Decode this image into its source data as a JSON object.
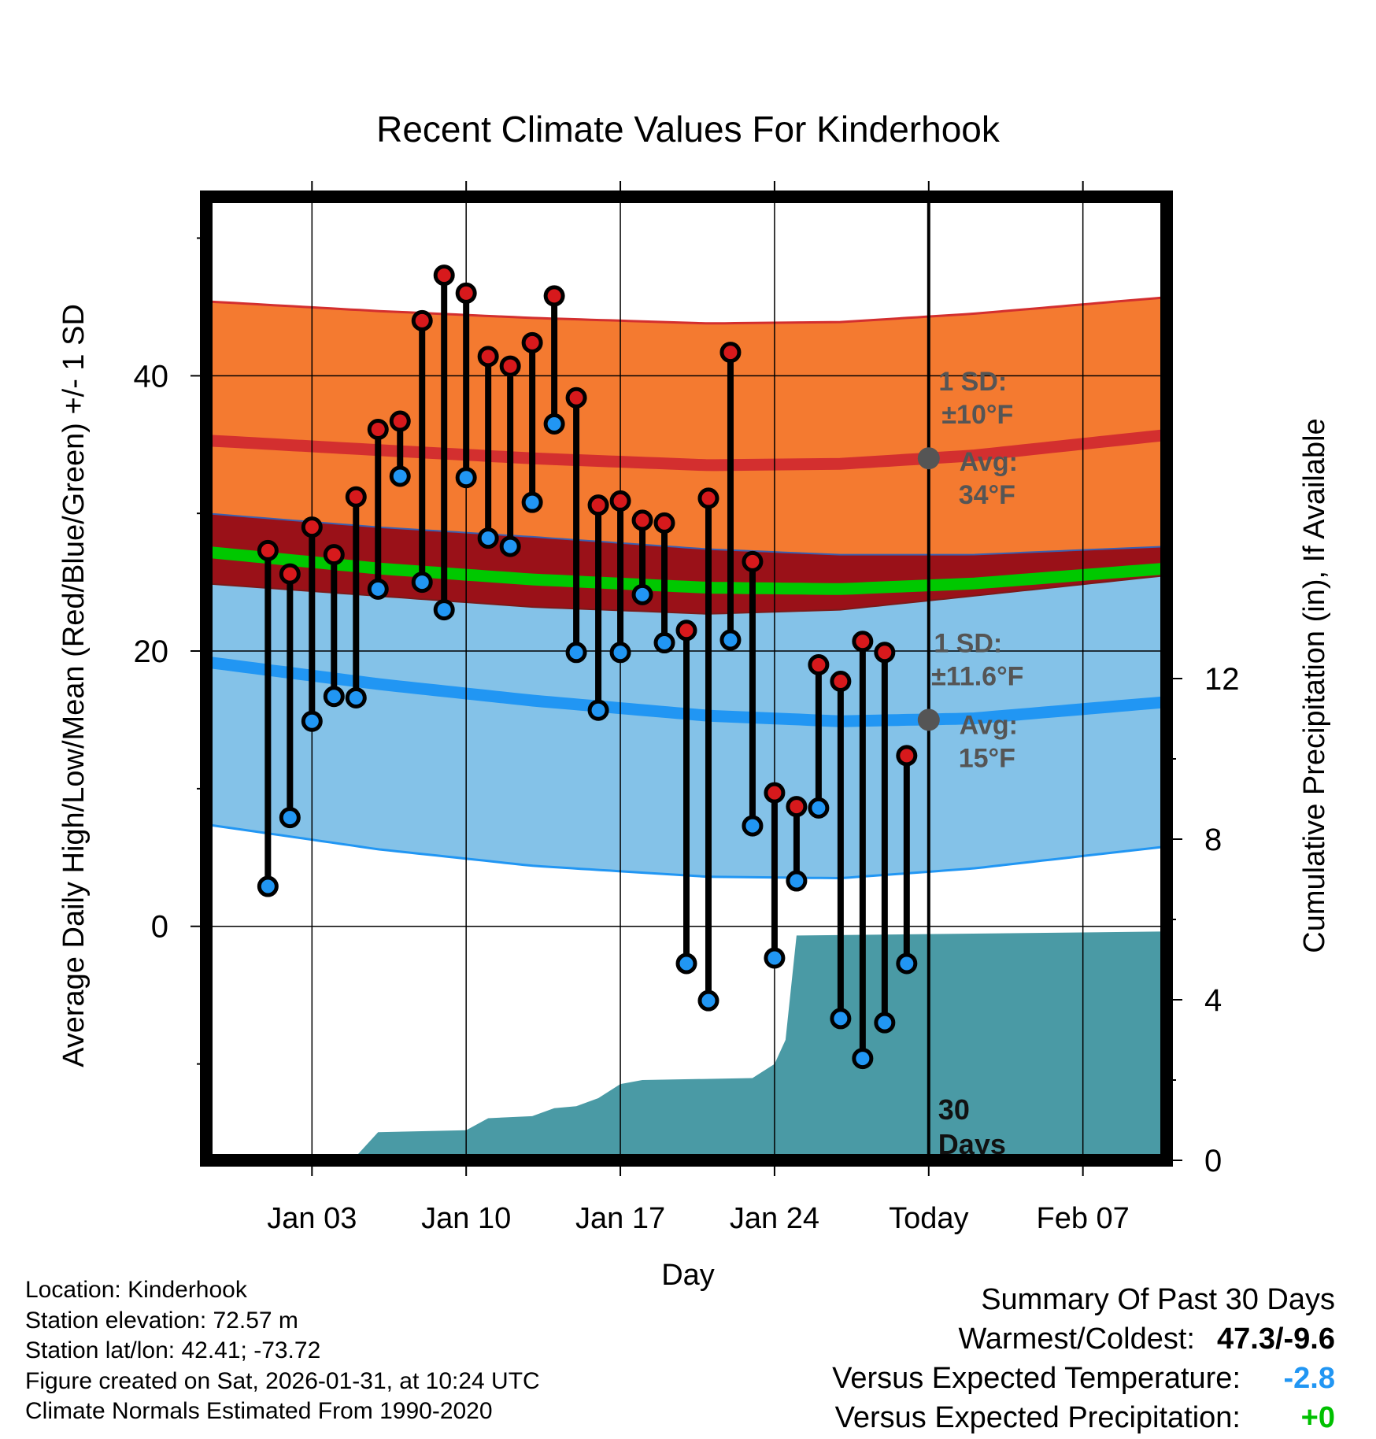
{
  "chart_data": {
    "type": "climate-range",
    "title": "Recent Climate Values For Kinderhook",
    "xlabel": "Day",
    "ylabel": "Average Daily High/Low/Mean (Red/Blue/Green) +/- 1 SD",
    "y2label": "Cumulative Precipitation (in), If Available",
    "ylim": [
      -17,
      53
    ],
    "y2lim": [
      0,
      24
    ],
    "xlim": [
      -2.8,
      40.8
    ],
    "yticks": [
      0,
      20,
      40
    ],
    "y2ticks": [
      0,
      4,
      8,
      12
    ],
    "xticks": [
      {
        "day": 2,
        "label": "Jan 03"
      },
      {
        "day": 9,
        "label": "Jan 10"
      },
      {
        "day": 16,
        "label": "Jan 17"
      },
      {
        "day": 23,
        "label": "Jan 24"
      },
      {
        "day": 30,
        "label": "Today"
      },
      {
        "day": 37,
        "label": "Feb 07"
      }
    ],
    "today_day": 30,
    "days_label": "30\nDays",
    "normal_curve_days": [
      -2.8,
      5,
      12,
      20,
      26,
      32,
      40.8
    ],
    "normal_high": [
      35.3,
      34.6,
      34.0,
      33.5,
      33.6,
      34.2,
      35.7
    ],
    "normal_high_sd_upper": [
      45.4,
      44.7,
      44.2,
      43.8,
      43.9,
      44.5,
      45.7
    ],
    "normal_high_sd_lower": [
      30.0,
      29.0,
      28.3,
      27.4,
      27.0,
      27.0,
      27.6
    ],
    "normal_mean": [
      27.2,
      26.0,
      25.2,
      24.6,
      24.5,
      24.9,
      26.0
    ],
    "normal_low": [
      19.2,
      17.6,
      16.4,
      15.3,
      14.9,
      15.1,
      16.3
    ],
    "normal_low_sd_upper": [
      24.9,
      24.0,
      23.2,
      22.7,
      23.0,
      24.0,
      25.5
    ],
    "normal_low_sd_lower": [
      7.4,
      5.6,
      4.4,
      3.6,
      3.5,
      4.2,
      5.8
    ],
    "high_annotation": {
      "sd": "1 SD:",
      "sd_value": "±10°F",
      "avg": "Avg:",
      "avg_value": "34°F",
      "avg_num": 34
    },
    "low_annotation": {
      "sd": "1 SD:",
      "sd_value": "±11.6°F",
      "avg": "Avg:",
      "avg_value": "15°F",
      "avg_num": 15
    },
    "series": [
      {
        "name": "Daily High",
        "color": "#d7191c",
        "days": [
          0,
          1,
          2,
          3,
          4,
          5,
          6,
          7,
          8,
          9,
          10,
          11,
          12,
          13,
          14,
          15,
          16,
          17,
          18,
          19,
          20,
          21,
          22,
          23,
          24,
          25,
          26,
          27,
          28,
          29
        ],
        "values": [
          27.3,
          25.6,
          29.0,
          27.0,
          31.2,
          36.1,
          36.7,
          44.0,
          47.3,
          46.0,
          41.4,
          40.7,
          42.4,
          45.8,
          38.4,
          30.6,
          30.9,
          29.5,
          29.3,
          21.5,
          31.1,
          41.7,
          26.5,
          9.7,
          8.7,
          19.0,
          17.8,
          20.7,
          19.9,
          12.4
        ]
      },
      {
        "name": "Daily Low",
        "color": "#2196f3",
        "days": [
          0,
          1,
          2,
          3,
          4,
          5,
          6,
          7,
          8,
          9,
          10,
          11,
          12,
          13,
          14,
          15,
          16,
          17,
          18,
          19,
          20,
          21,
          22,
          23,
          24,
          25,
          26,
          27,
          28,
          29
        ],
        "values": [
          2.9,
          7.9,
          14.9,
          16.7,
          16.6,
          24.5,
          32.7,
          25.0,
          23.0,
          32.6,
          28.2,
          27.6,
          30.8,
          36.5,
          19.9,
          15.7,
          19.9,
          24.1,
          20.6,
          -2.7,
          -5.4,
          20.8,
          7.3,
          -2.3,
          3.3,
          8.6,
          -6.7,
          -9.6,
          -7.0,
          -2.7
        ]
      },
      {
        "name": "Cumulative Precipitation",
        "color": "#4a9aa5",
        "days": [
          -2.8,
          2,
          4,
          5,
          9,
          10,
          12,
          13,
          14,
          15,
          16,
          17,
          22,
          23,
          23.5,
          24,
          40.8
        ],
        "values": [
          0,
          0,
          0.1,
          0.7,
          0.75,
          1.05,
          1.1,
          1.3,
          1.35,
          1.55,
          1.9,
          2.0,
          2.05,
          2.4,
          3.0,
          5.6,
          5.7
        ]
      }
    ]
  },
  "info": {
    "location": "Location: Kinderhook",
    "elevation": "Station elevation: 72.57 m",
    "latlon": "Station lat/lon: 42.41; -73.72",
    "created": "Figure created on Sat, 2026-01-31, at 10:24 UTC",
    "normals": "Climate Normals Estimated From 1990-2020"
  },
  "summary": {
    "title": "Summary Of Past 30 Days",
    "warmest_label": "Warmest/Coldest:",
    "warmest_value": "47.3/-9.6",
    "temp_label": "Versus Expected Temperature:",
    "temp_value": "-2.8",
    "temp_color": "#2196f3",
    "precip_label": "Versus Expected Precipitation:",
    "precip_value": "+0",
    "precip_color": "#00c000"
  }
}
